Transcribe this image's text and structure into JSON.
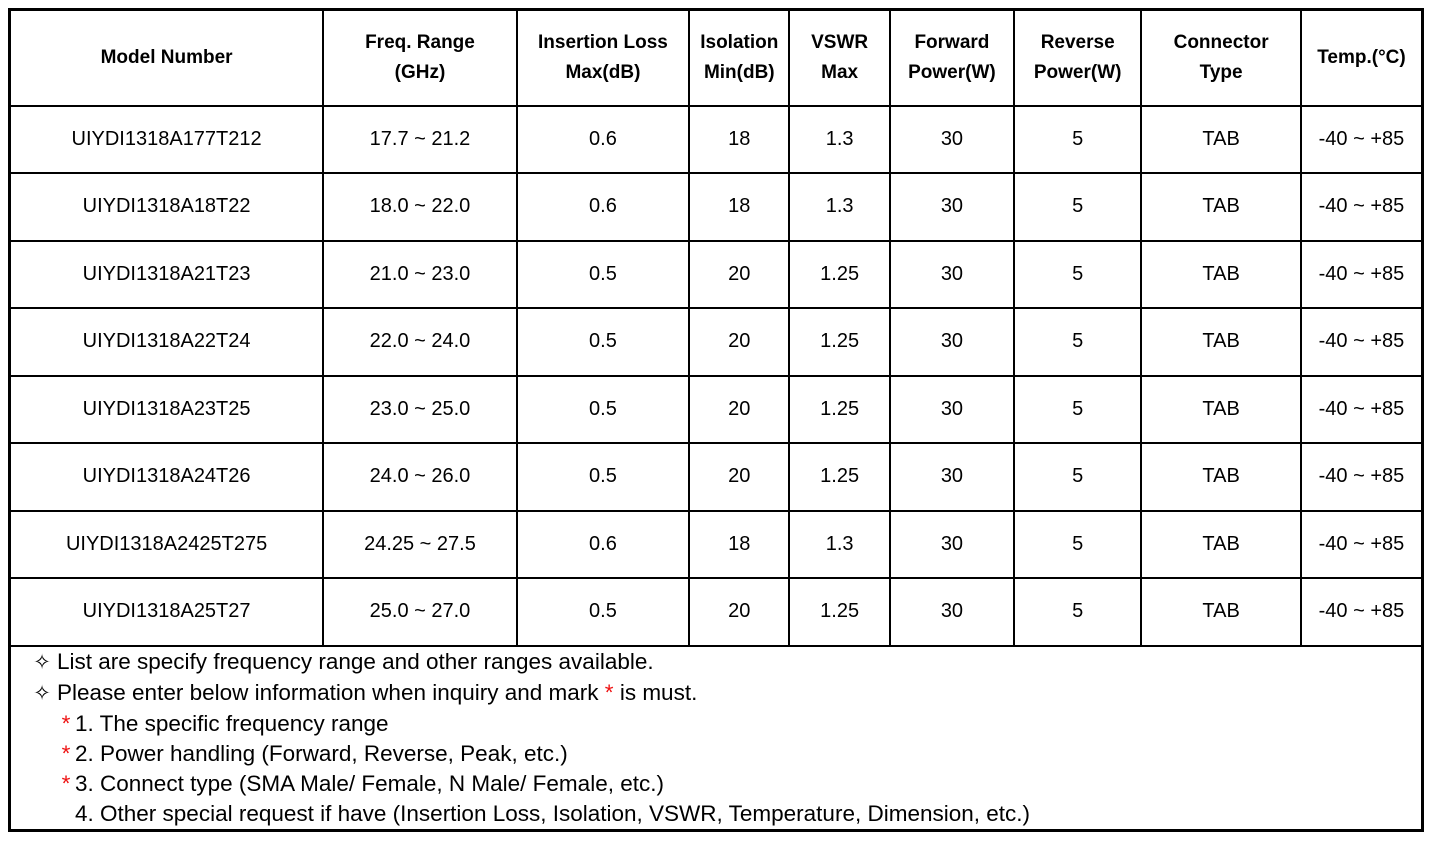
{
  "page": {
    "background_color": "#ffffff",
    "border_color": "#000000",
    "text_color": "#000000",
    "required_mark_color": "#ee1111"
  },
  "table": {
    "columns": [
      {
        "id": "model-number",
        "label": "Model Number",
        "width_pct": 22.2
      },
      {
        "id": "freq-range",
        "label": "Freq. Range\n(GHz)",
        "width_pct": 13.7
      },
      {
        "id": "insertion-loss",
        "label": "Insertion Loss\nMax(dB)",
        "width_pct": 12.2
      },
      {
        "id": "isolation",
        "label": "Isolation\nMin(dB)",
        "width_pct": 7.1
      },
      {
        "id": "vswr",
        "label": "VSWR\nMax",
        "width_pct": 7.1
      },
      {
        "id": "forward-power",
        "label": "Forward\nPower(W)",
        "width_pct": 8.8
      },
      {
        "id": "reverse-power",
        "label": "Reverse\nPower(W)",
        "width_pct": 9.0
      },
      {
        "id": "connector-type",
        "label": "Connector\nType",
        "width_pct": 11.3
      },
      {
        "id": "temp",
        "label": "Temp.(°C)",
        "width_pct": 8.6
      }
    ],
    "rows": [
      [
        "UIYDI1318A177T212",
        "17.7 ~ 21.2",
        "0.6",
        "18",
        "1.3",
        "30",
        "5",
        "TAB",
        "-40 ~ +85"
      ],
      [
        "UIYDI1318A18T22",
        "18.0 ~ 22.0",
        "0.6",
        "18",
        "1.3",
        "30",
        "5",
        "TAB",
        "-40 ~ +85"
      ],
      [
        "UIYDI1318A21T23",
        "21.0 ~ 23.0",
        "0.5",
        "20",
        "1.25",
        "30",
        "5",
        "TAB",
        "-40 ~ +85"
      ],
      [
        "UIYDI1318A22T24",
        "22.0 ~ 24.0",
        "0.5",
        "20",
        "1.25",
        "30",
        "5",
        "TAB",
        "-40 ~ +85"
      ],
      [
        "UIYDI1318A23T25",
        "23.0 ~ 25.0",
        "0.5",
        "20",
        "1.25",
        "30",
        "5",
        "TAB",
        "-40 ~ +85"
      ],
      [
        "UIYDI1318A24T26",
        "24.0 ~ 26.0",
        "0.5",
        "20",
        "1.25",
        "30",
        "5",
        "TAB",
        "-40 ~ +85"
      ],
      [
        "UIYDI1318A2425T275",
        "24.25 ~ 27.5",
        "0.6",
        "18",
        "1.3",
        "30",
        "5",
        "TAB",
        "-40 ~ +85"
      ],
      [
        "UIYDI1318A25T27",
        "25.0 ~ 27.0",
        "0.5",
        "20",
        "1.25",
        "30",
        "5",
        "TAB",
        "-40 ~ +85"
      ]
    ]
  },
  "notes": {
    "bullet_char": "✧",
    "required_mark": "*",
    "items": [
      {
        "type": "bullet",
        "text": "List are specify frequency range and other ranges available."
      },
      {
        "type": "bullet_with_mark",
        "before": "Please enter below information when inquiry and mark ",
        "mark": "*",
        "after": " is must."
      },
      {
        "type": "starred",
        "mark": "*",
        "text": "1. The specific frequency range"
      },
      {
        "type": "starred",
        "mark": "*",
        "text": "2. Power handling (Forward, Reverse, Peak, etc.)"
      },
      {
        "type": "starred",
        "mark": "*",
        "text": "3. Connect type (SMA Male/ Female, N Male/ Female, etc.)"
      },
      {
        "type": "plain",
        "text": "4. Other special request if have (Insertion Loss, Isolation, VSWR, Temperature, Dimension, etc.)"
      }
    ]
  }
}
